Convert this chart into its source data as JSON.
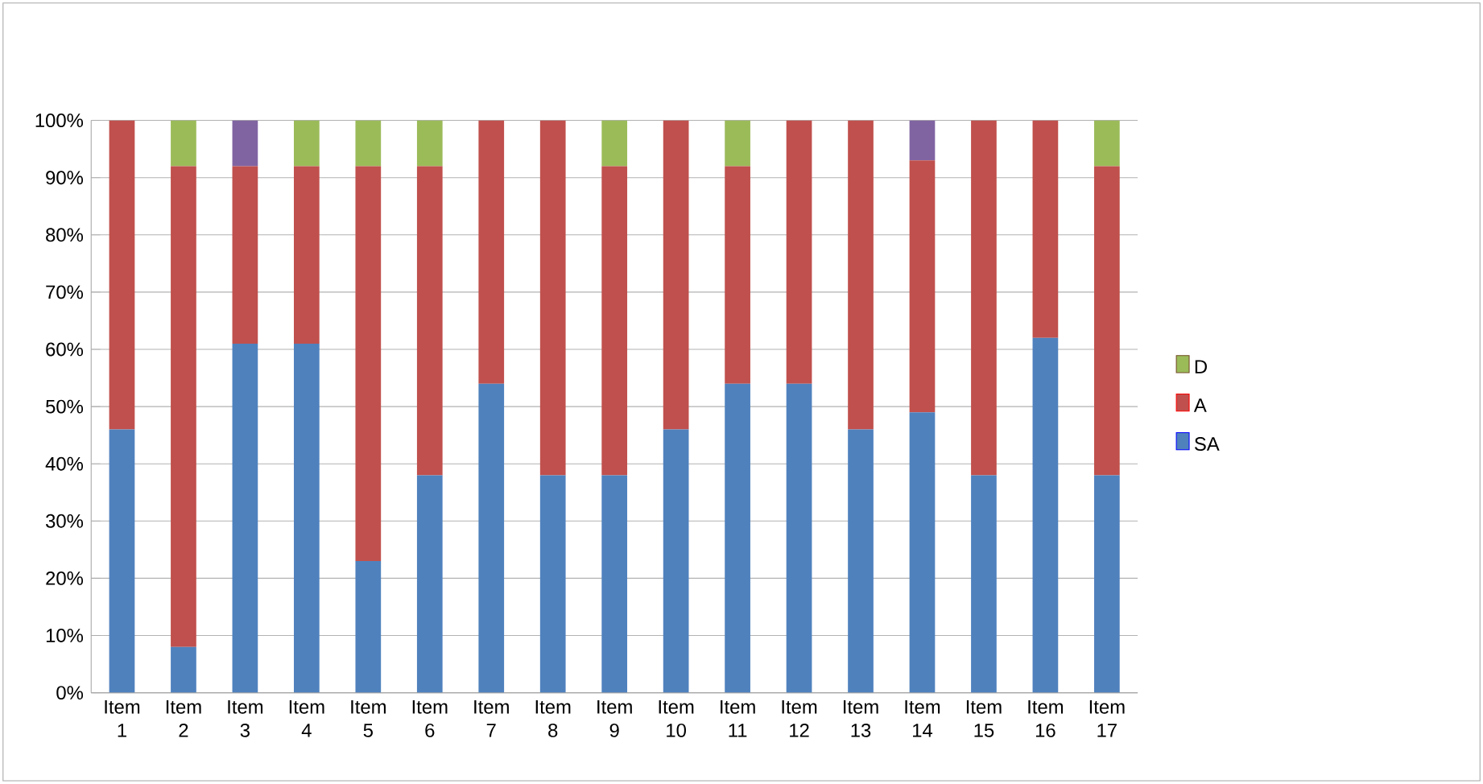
{
  "chart_data": {
    "type": "bar",
    "stacked": true,
    "categories": [
      "Item 1",
      "Item 2",
      "Item 3",
      "Item 4",
      "Item 5",
      "Item 6",
      "Item 7",
      "Item 8",
      "Item 9",
      "Item 10",
      "Item 11",
      "Item 12",
      "Item 13",
      "Item 14",
      "Item 15",
      "Item 16",
      "Item 17"
    ],
    "series": [
      {
        "name": "SA",
        "color": "#4f81bd",
        "values": [
          46,
          8,
          61,
          61,
          23,
          38,
          54,
          38,
          38,
          46,
          54,
          54,
          46,
          49,
          38,
          62,
          38
        ]
      },
      {
        "name": "A",
        "color": "#c0504d",
        "values": [
          54,
          84,
          31,
          31,
          69,
          54,
          46,
          62,
          54,
          54,
          38,
          46,
          54,
          44,
          62,
          38,
          54
        ]
      },
      {
        "name": "D",
        "color": "#9bbb59",
        "values": [
          0,
          8,
          0,
          8,
          8,
          8,
          0,
          0,
          8,
          0,
          8,
          0,
          0,
          0,
          0,
          0,
          8
        ]
      },
      {
        "color": "#8064a2",
        "values": [
          0,
          0,
          8,
          0,
          0,
          0,
          0,
          0,
          0,
          0,
          0,
          0,
          0,
          7,
          0,
          0,
          0
        ]
      }
    ],
    "ylim": [
      0,
      100
    ],
    "yticks": [
      {
        "value": 0,
        "label": "0%"
      },
      {
        "value": 10,
        "label": "10%"
      },
      {
        "value": 20,
        "label": "20%"
      },
      {
        "value": 30,
        "label": "30%"
      },
      {
        "value": 40,
        "label": "40%"
      },
      {
        "value": 50,
        "label": "50%"
      },
      {
        "value": 60,
        "label": "60%"
      },
      {
        "value": 70,
        "label": "70%"
      },
      {
        "value": 80,
        "label": "80%"
      },
      {
        "value": 90,
        "label": "90%"
      },
      {
        "value": 100,
        "label": "100%"
      }
    ],
    "grid": "y",
    "legend": "right"
  }
}
